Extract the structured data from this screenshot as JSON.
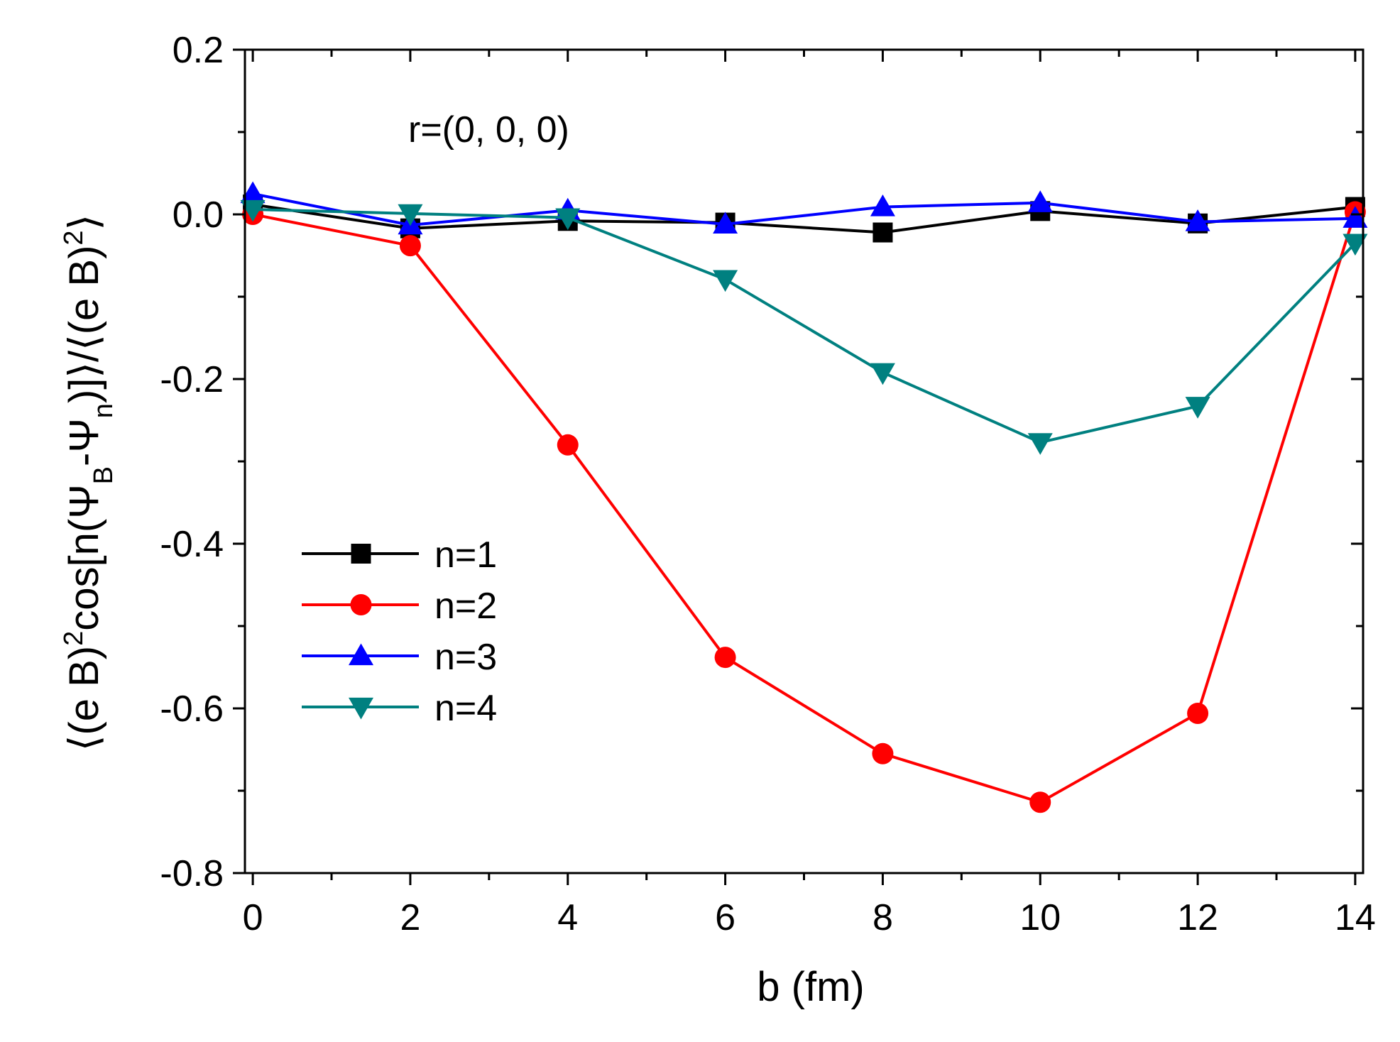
{
  "chart_data": {
    "type": "line",
    "title": "",
    "xlabel": "b (fm)",
    "ylabel": "⟨(e B)²cos[n(Ψ_B-Ψ_n)]⟩/⟨(e B)²⟩",
    "ylabel_parts": {
      "open": "⟨(e B)",
      "sq1": "2",
      "cos": "cos[n(Ψ",
      "subB": "B",
      "minus": "-Ψ",
      "subn": "n",
      "close": ")]⟩/⟨(e B)",
      "sq2": "2",
      "end": "⟩"
    },
    "xlim": [
      -0.1,
      14.1
    ],
    "ylim": [
      -0.8,
      0.2
    ],
    "x_ticks": [
      "0",
      "2",
      "4",
      "6",
      "8",
      "10",
      "12",
      "14"
    ],
    "y_ticks": [
      "0.2",
      "0.0",
      "-0.2",
      "-0.4",
      "-0.6",
      "-0.8"
    ],
    "annotation": "r=(0, 0, 0)",
    "legend_position": "lower-left",
    "x": [
      0,
      2,
      4,
      6,
      8,
      10,
      12,
      14
    ],
    "series": [
      {
        "name": "n=1",
        "marker": "square",
        "color": "#000000",
        "values": [
          0.012,
          -0.017,
          -0.008,
          -0.01,
          -0.022,
          0.004,
          -0.011,
          0.009
        ]
      },
      {
        "name": "n=2",
        "marker": "circle",
        "color": "#ff0000",
        "values": [
          0.0,
          -0.038,
          -0.28,
          -0.538,
          -0.655,
          -0.714,
          -0.606,
          0.003
        ]
      },
      {
        "name": "n=3",
        "marker": "triangle-up",
        "color": "#0000ff",
        "values": [
          0.025,
          -0.013,
          0.005,
          -0.012,
          0.009,
          0.014,
          -0.009,
          -0.005
        ]
      },
      {
        "name": "n=4",
        "marker": "triangle-down",
        "color": "#008080",
        "values": [
          0.006,
          0.001,
          -0.004,
          -0.079,
          -0.192,
          -0.277,
          -0.233,
          -0.035
        ]
      }
    ]
  }
}
